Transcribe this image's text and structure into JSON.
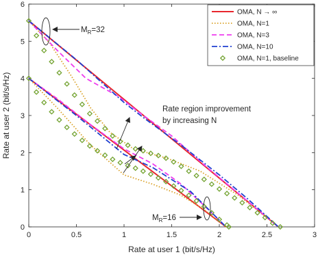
{
  "chart_data": {
    "type": "line",
    "xlabel": "Rate at user 1 (bit/s/Hz)",
    "ylabel": "Rate at user 2 (bit/s/Hz)",
    "xlim": [
      0,
      3
    ],
    "ylim": [
      0,
      6
    ],
    "xticks": [
      "0",
      "0.5",
      "1",
      "1.5",
      "2",
      "2.5",
      "3"
    ],
    "yticks": [
      "0",
      "1",
      "2",
      "3",
      "4",
      "5",
      "6"
    ],
    "grid": false,
    "legend_position": "top-right",
    "series": [
      {
        "name": "OMA, N → ∞",
        "color": "#e8262d",
        "style": "solid",
        "groups": [
          [
            [
              0,
              5.55
            ],
            [
              2.62,
              0
            ]
          ],
          [
            [
              0,
              4.0
            ],
            [
              2.07,
              0
            ]
          ]
        ]
      },
      {
        "name": "OMA, N=1",
        "color": "#d9a025",
        "style": "dotted",
        "groups": [
          [
            [
              0,
              5.55
            ],
            [
              0.22,
              4.95
            ],
            [
              0.45,
              4.05
            ],
            [
              0.65,
              3.2
            ],
            [
              0.85,
              2.55
            ],
            [
              1.1,
              2.1
            ],
            [
              1.45,
              1.85
            ],
            [
              1.8,
              1.5
            ],
            [
              2.2,
              0.85
            ],
            [
              2.62,
              0
            ]
          ],
          [
            [
              0,
              4.0
            ],
            [
              0.3,
              3.2
            ],
            [
              0.65,
              2.2
            ],
            [
              1.0,
              1.4
            ],
            [
              1.3,
              1.15
            ],
            [
              1.6,
              0.85
            ],
            [
              1.85,
              0.45
            ],
            [
              2.07,
              0
            ]
          ]
        ]
      },
      {
        "name": "OMA, N=3",
        "color": "#ee3bee",
        "style": "dashed",
        "groups": [
          [
            [
              0,
              5.55
            ],
            [
              0.3,
              4.75
            ],
            [
              0.6,
              4.0
            ],
            [
              0.95,
              3.5
            ],
            [
              1.15,
              3.1
            ],
            [
              1.5,
              2.45
            ],
            [
              1.85,
              1.65
            ],
            [
              2.2,
              0.9
            ],
            [
              2.62,
              0
            ]
          ],
          [
            [
              0,
              4.0
            ],
            [
              0.3,
              3.45
            ],
            [
              0.65,
              2.75
            ],
            [
              1.0,
              2.1
            ],
            [
              1.3,
              1.7
            ],
            [
              1.6,
              1.15
            ],
            [
              1.85,
              0.55
            ],
            [
              2.07,
              0
            ]
          ]
        ]
      },
      {
        "name": "OMA, N=10",
        "color": "#1f3fd0",
        "style": "dashdot",
        "groups": [
          [
            [
              0,
              5.55
            ],
            [
              0.5,
              4.5
            ],
            [
              1.0,
              3.35
            ],
            [
              1.2,
              2.95
            ],
            [
              1.6,
              2.2
            ],
            [
              2.0,
              1.4
            ],
            [
              2.3,
              0.75
            ],
            [
              2.62,
              0
            ]
          ],
          [
            [
              0,
              4.0
            ],
            [
              0.5,
              3.0
            ],
            [
              1.0,
              1.95
            ],
            [
              1.3,
              1.6
            ],
            [
              1.7,
              0.95
            ],
            [
              2.07,
              0
            ]
          ]
        ]
      },
      {
        "name": "OMA, N=1, baseline",
        "color": "#73a331",
        "style": "diamond-markers",
        "groups": [
          [
            [
              0,
              5.55
            ],
            [
              0.08,
              5.15
            ],
            [
              0.16,
              4.75
            ],
            [
              0.24,
              4.45
            ],
            [
              0.32,
              4.15
            ],
            [
              0.4,
              3.85
            ],
            [
              0.48,
              3.55
            ],
            [
              0.56,
              3.3
            ],
            [
              0.64,
              3.05
            ],
            [
              0.72,
              2.85
            ],
            [
              0.8,
              2.65
            ],
            [
              0.88,
              2.45
            ],
            [
              0.96,
              2.3
            ],
            [
              1.04,
              2.2
            ],
            [
              1.12,
              2.1
            ],
            [
              1.2,
              2.05
            ],
            [
              1.28,
              1.98
            ],
            [
              1.36,
              1.92
            ],
            [
              1.44,
              1.85
            ],
            [
              1.52,
              1.75
            ],
            [
              1.6,
              1.63
            ],
            [
              1.68,
              1.5
            ],
            [
              1.76,
              1.38
            ],
            [
              1.84,
              1.28
            ],
            [
              1.92,
              1.15
            ],
            [
              2.0,
              1.02
            ],
            [
              2.08,
              0.9
            ],
            [
              2.16,
              0.78
            ],
            [
              2.24,
              0.65
            ],
            [
              2.32,
              0.52
            ],
            [
              2.4,
              0.38
            ],
            [
              2.48,
              0.25
            ],
            [
              2.56,
              0.1
            ],
            [
              2.64,
              0
            ]
          ],
          [
            [
              0,
              4.0
            ],
            [
              0.08,
              3.63
            ],
            [
              0.16,
              3.35
            ],
            [
              0.24,
              3.1
            ],
            [
              0.32,
              2.88
            ],
            [
              0.4,
              2.68
            ],
            [
              0.48,
              2.5
            ],
            [
              0.56,
              2.33
            ],
            [
              0.64,
              2.18
            ],
            [
              0.72,
              2.05
            ],
            [
              0.8,
              1.93
            ],
            [
              0.88,
              1.82
            ],
            [
              0.96,
              1.73
            ],
            [
              1.04,
              1.65
            ],
            [
              1.12,
              1.58
            ],
            [
              1.2,
              1.5
            ],
            [
              1.28,
              1.42
            ],
            [
              1.36,
              1.32
            ],
            [
              1.44,
              1.22
            ],
            [
              1.52,
              1.1
            ],
            [
              1.6,
              0.98
            ],
            [
              1.68,
              0.85
            ],
            [
              1.76,
              0.7
            ],
            [
              1.84,
              0.55
            ],
            [
              1.92,
              0.38
            ],
            [
              2.0,
              0.2
            ],
            [
              2.08,
              0.05
            ],
            [
              2.1,
              0
            ]
          ]
        ]
      }
    ],
    "annotations": [
      {
        "id": "mr32",
        "text": "32",
        "prefix": "M",
        "sub": "R",
        "sign": "=",
        "x": 0.17,
        "y": 5.15
      },
      {
        "id": "mr16",
        "text": "16",
        "prefix": "M",
        "sub": "R",
        "sign": "=",
        "x": 1.83,
        "y": 0.5
      },
      {
        "id": "improve",
        "lines": [
          "Rate region improvement",
          "by increasing N"
        ]
      }
    ]
  }
}
